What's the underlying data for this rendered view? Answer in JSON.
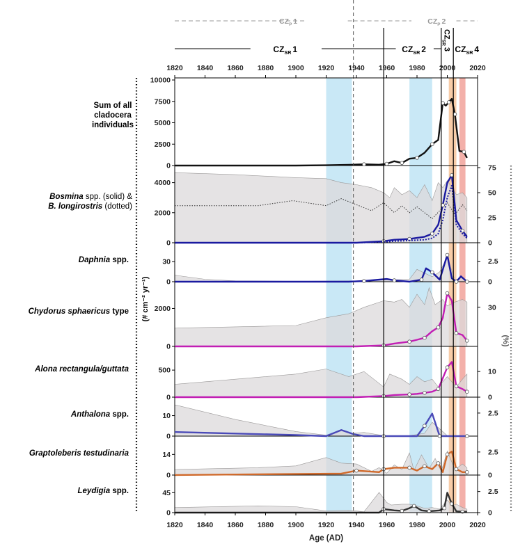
{
  "figure": {
    "xlabel": "Age (AD)",
    "ylabel_left": "(# cm⁻² yr⁻¹)",
    "ylabel_right": "(%)",
    "colors": {
      "total": "#111111",
      "bosmina": "#1a1aa0",
      "daphnia": "#1a1aa0",
      "chydorus": "#c21fb4",
      "alona": "#c21fb4",
      "anthalona": "#4a4ab8",
      "graptoleberis": "#d0692a",
      "leydigia": "#333333",
      "area": "#dcdadb",
      "blue_band": "#bfe4f4",
      "orange_band": "#f6c79e",
      "red_band": "#f2a7a0"
    }
  },
  "zones": {
    "czp": [
      {
        "label": "CZ",
        "sub": "P",
        "num": "1"
      },
      {
        "label": "CZ",
        "sub": "P",
        "num": "2"
      }
    ],
    "czsr": [
      {
        "label": "CZ",
        "sub": "SR",
        "num": "1"
      },
      {
        "label": "CZ",
        "sub": "SR",
        "num": "2"
      },
      {
        "label": "CZ",
        "sub": "SR",
        "num": "3"
      },
      {
        "label": "CZ",
        "sub": "SR",
        "num": "4"
      }
    ]
  },
  "chart_data": {
    "type": "area",
    "x_range": [
      1820,
      2020
    ],
    "x_ticks": [
      1820,
      1840,
      1860,
      1880,
      1900,
      1920,
      1940,
      1960,
      1980,
      2000,
      2020
    ],
    "zone_boundaries": {
      "czp": [
        1938
      ],
      "czsr": [
        1958,
        1996,
        2004
      ]
    },
    "bands": [
      {
        "from": 1920,
        "to": 1937,
        "color": "blue"
      },
      {
        "from": 1975,
        "to": 1990,
        "color": "blue"
      },
      {
        "from": 2001,
        "to": 2006,
        "color": "orange"
      },
      {
        "from": 2008,
        "to": 2012,
        "color": "red"
      }
    ],
    "panels": [
      {
        "name": "Sum of all cladocera individuals",
        "label_lines": [
          "Sum of all",
          "cladocera",
          "individuals"
        ],
        "yticks_left": [
          "0",
          "2500",
          "5000",
          "7500",
          "10000"
        ],
        "yticks_left_values": [
          0,
          2500,
          5000,
          7500,
          10000
        ],
        "ylim_left": [
          0,
          10000
        ],
        "series": [
          {
            "x": [
              1820,
              1900,
              1920,
              1935,
              1945,
              1955,
              1960,
              1965,
              1970,
              1975,
              1980,
              1985,
              1990,
              1994,
              1997,
              1999,
              2001,
              2003,
              2005,
              2008,
              2011,
              2013
            ],
            "y": [
              0,
              0,
              30,
              80,
              150,
              100,
              200,
              500,
              300,
              800,
              900,
              1500,
              2500,
              3000,
              7300,
              7000,
              7400,
              7800,
              6000,
              1700,
              1600,
              900
            ]
          }
        ]
      },
      {
        "name": "Bosmina spp. (solid) & B. longirostris (dotted)",
        "label_parts": [
          "Bosmina",
          " spp. (solid) &",
          "B. longirostris",
          " (dotted)"
        ],
        "yticks_left": [
          "0",
          "2000",
          "4000"
        ],
        "yticks_left_values": [
          0,
          2000,
          4000
        ],
        "ylim_left": [
          0,
          5000
        ],
        "yticks_right": [
          "0",
          "25",
          "50",
          "75"
        ],
        "yticks_right_values": [
          0,
          25,
          50,
          75
        ],
        "ylim_right": [
          0,
          75
        ],
        "area": {
          "x": [
            1820,
            1860,
            1900,
            1920,
            1930,
            1940,
            1950,
            1958,
            1962,
            1965,
            1970,
            1975,
            1980,
            1985,
            1990,
            1994,
            1997,
            2000,
            2003,
            2006,
            2010,
            2013
          ],
          "y": [
            70,
            68,
            65,
            64,
            60,
            58,
            55,
            50,
            45,
            55,
            48,
            52,
            45,
            58,
            42,
            60,
            55,
            62,
            55,
            48,
            50,
            45
          ]
        },
        "series": [
          {
            "x": [
              1820,
              1940,
              1958,
              1965,
              1975,
              1985,
              1990,
              1994,
              1997,
              2000,
              2003,
              2006,
              2010,
              2013
            ],
            "y": [
              0,
              0,
              100,
              200,
              250,
              400,
              600,
              1200,
              2500,
              4000,
              4500,
              1500,
              800,
              400
            ],
            "style": "solid"
          },
          {
            "x": [
              1820,
              1940,
              1958,
              1965,
              1975,
              1985,
              1990,
              1994,
              1997,
              2000,
              2003,
              2006,
              2010,
              2013
            ],
            "y": [
              0,
              0,
              50,
              100,
              150,
              200,
              300,
              600,
              1500,
              3000,
              3800,
              1200,
              600,
              300
            ],
            "style": "dotted"
          }
        ],
        "pct_line": {
          "x": [
            1820,
            1875,
            1898,
            1920,
            1930,
            1940,
            1950,
            1958,
            1965,
            1970,
            1975,
            1980,
            1985,
            1990,
            1995,
            2000,
            2005,
            2010,
            2013
          ],
          "y": [
            37,
            37,
            42,
            37,
            44,
            38,
            32,
            40,
            30,
            37,
            30,
            36,
            30,
            24,
            32,
            40,
            28,
            38,
            32
          ]
        }
      },
      {
        "name": "Daphnia spp.",
        "label_parts": [
          "Daphnia",
          " spp."
        ],
        "yticks_left": [
          "0",
          "30"
        ],
        "yticks_left_values": [
          0,
          30
        ],
        "ylim_left": [
          0,
          55
        ],
        "yticks_right": [
          "0",
          "2.5"
        ],
        "yticks_right_values": [
          0,
          2.5
        ],
        "ylim_right": [
          0,
          4.5
        ],
        "area": {
          "x": [
            1820,
            1840,
            1860,
            1900,
            1940,
            1960,
            1975,
            1980,
            1990,
            1995,
            2000,
            2005,
            2010,
            2013
          ],
          "y": [
            0.8,
            0.3,
            0.1,
            0.05,
            0.1,
            0.2,
            0.3,
            1.5,
            0.6,
            1.2,
            3.0,
            0.2,
            0.5,
            0.1
          ]
        },
        "series": [
          {
            "x": [
              1820,
              1935,
              1945,
              1960,
              1965,
              1975,
              1983,
              1986,
              1990,
              1995,
              2000,
              2003,
              2006,
              2009,
              2013
            ],
            "y": [
              0,
              0,
              1,
              4,
              2,
              0,
              3,
              20,
              14,
              3,
              40,
              5,
              0,
              8,
              0
            ]
          }
        ]
      },
      {
        "name": "Chydorus sphaericus type",
        "label_parts": [
          "Chydorus sphaericus",
          " type"
        ],
        "yticks_left": [
          "0",
          "2000"
        ],
        "yticks_left_values": [
          0,
          2000
        ],
        "ylim_left": [
          0,
          3300
        ],
        "yticks_right": [
          "30"
        ],
        "yticks_right_values": [
          30
        ],
        "ylim_right": [
          0,
          48
        ],
        "area": {
          "x": [
            1820,
            1860,
            1900,
            1920,
            1935,
            1945,
            1958,
            1965,
            1970,
            1975,
            1980,
            1985,
            1988,
            1992,
            1997,
            2000,
            2005,
            2010,
            2013
          ],
          "y": [
            14,
            15,
            16,
            22,
            25,
            30,
            35,
            34,
            36,
            30,
            40,
            32,
            45,
            32,
            36,
            31,
            34,
            36,
            34
          ]
        },
        "series": [
          {
            "x": [
              1820,
              1940,
              1958,
              1965,
              1975,
              1980,
              1985,
              1990,
              1994,
              1997,
              2000,
              2003,
              2006,
              2010,
              2013
            ],
            "y": [
              0,
              0,
              50,
              150,
              250,
              350,
              450,
              800,
              1000,
              1500,
              2800,
              2400,
              700,
              600,
              300
            ]
          }
        ]
      },
      {
        "name": "Alona rectangula/guttata",
        "label_parts": [
          "Alona rectangula/guttata",
          ""
        ],
        "yticks_left": [
          "0",
          "500"
        ],
        "yticks_left_values": [
          0,
          500
        ],
        "ylim_left": [
          0,
          900
        ],
        "yticks_right": [
          "0",
          "10"
        ],
        "yticks_right_values": [
          0,
          10
        ],
        "ylim_right": [
          0,
          19
        ],
        "area": {
          "x": [
            1820,
            1860,
            1900,
            1920,
            1935,
            1945,
            1958,
            1962,
            1970,
            1975,
            1980,
            1985,
            1990,
            1994,
            2000,
            2003,
            2006,
            2010,
            2013
          ],
          "y": [
            5,
            7,
            9,
            11,
            8,
            10,
            4,
            9,
            7,
            5,
            8,
            6,
            7,
            4,
            8,
            6,
            4,
            7,
            9
          ]
        },
        "series": [
          {
            "x": [
              1820,
              1940,
              1958,
              1965,
              1975,
              1980,
              1985,
              1990,
              1994,
              1997,
              2000,
              2003,
              2006,
              2010,
              2013
            ],
            "y": [
              0,
              0,
              20,
              40,
              50,
              60,
              80,
              100,
              150,
              350,
              550,
              650,
              200,
              150,
              100
            ]
          }
        ]
      },
      {
        "name": "Anthalona spp.",
        "label_parts": [
          "Anthalona",
          " spp."
        ],
        "yticks_left": [
          "0",
          "10"
        ],
        "yticks_left_values": [
          0,
          10
        ],
        "ylim_left": [
          0,
          18
        ],
        "yticks_right": [
          "2.5"
        ],
        "yticks_right_values": [
          2.5
        ],
        "ylim_right": [
          0,
          4
        ],
        "area": {
          "x": [
            1820,
            1860,
            1900,
            1920,
            1930,
            1938,
            1945,
            1958,
            1975,
            1985,
            1990,
            2000,
            2013
          ],
          "y": [
            3.4,
            1.8,
            0.5,
            0.1,
            0.6,
            0.3,
            0.4,
            0.05,
            0.05,
            0.3,
            1.5,
            0.05,
            0.05
          ]
        },
        "series": [
          {
            "x": [
              1820,
              1900,
              1920,
              1930,
              1938,
              1945,
              1958,
              1980,
              1985,
              1990,
              1995,
              2000,
              2013
            ],
            "y": [
              2,
              0.5,
              0,
              3,
              1,
              0,
              0,
              0,
              5,
              11,
              0,
              0,
              0
            ]
          }
        ]
      },
      {
        "name": "Graptoleberis testudinaria",
        "label_parts": [
          "Graptoleberis testudinaria",
          ""
        ],
        "yticks_left": [
          "0",
          "14"
        ],
        "yticks_left_values": [
          0,
          14
        ],
        "ylim_left": [
          0,
          25
        ],
        "yticks_right": [
          "0",
          "2.5"
        ],
        "yticks_right_values": [
          0,
          2.5
        ],
        "ylim_right": [
          0,
          4
        ],
        "area": {
          "x": [
            1820,
            1875,
            1900,
            1920,
            1930,
            1940,
            1950,
            1955,
            1960,
            1965,
            1970,
            1975,
            1978,
            1983,
            1988,
            1992,
            1996,
            2000,
            2005,
            2010,
            2013
          ],
          "y": [
            0.6,
            0.8,
            1.0,
            1.9,
            1.3,
            1.2,
            0.4,
            0.8,
            0.2,
            1.1,
            0.6,
            2.4,
            0.5,
            2.2,
            0.7,
            1.8,
            0.4,
            2.6,
            0.6,
            1.2,
            0.8
          ]
        },
        "series": [
          {
            "x": [
              1820,
              1930,
              1940,
              1955,
              1958,
              1965,
              1975,
              1980,
              1985,
              1990,
              1994,
              1997,
              2000,
              2003,
              2006,
              2010,
              2013
            ],
            "y": [
              0,
              1,
              3,
              2,
              4,
              5,
              5,
              3,
              6,
              4,
              8,
              2,
              14,
              16,
              4,
              2,
              2
            ]
          }
        ]
      },
      {
        "name": "Leydigia spp.",
        "label_parts": [
          "Leydigia",
          " spp."
        ],
        "yticks_left": [
          "0",
          "45"
        ],
        "yticks_left_values": [
          0,
          45
        ],
        "ylim_left": [
          0,
          80
        ],
        "yticks_right": [
          "0",
          "2.5"
        ],
        "yticks_right_values": [
          0,
          2.5
        ],
        "ylim_right": [
          0,
          4.2
        ],
        "area": {
          "x": [
            1820,
            1875,
            1900,
            1920,
            1935,
            1945,
            1955,
            1960,
            1963,
            1970,
            1975,
            1980,
            1985,
            1990,
            1995,
            2000,
            2003,
            2006,
            2010,
            2013
          ],
          "y": [
            0.6,
            0.8,
            0.7,
            0.2,
            0.3,
            0.1,
            2.4,
            1.2,
            0.9,
            1.0,
            1.0,
            0.8,
            0.5,
            0.6,
            0.4,
            1.5,
            0.8,
            1.0,
            0.6,
            0.4
          ]
        },
        "series": [
          {
            "x": [
              1820,
              1955,
              1958,
              1965,
              1970,
              1975,
              1978,
              1983,
              1988,
              1995,
              1998,
              2000,
              2003,
              2006,
              2010,
              2013
            ],
            "y": [
              0,
              0,
              8,
              5,
              4,
              10,
              15,
              5,
              3,
              5,
              10,
              45,
              20,
              3,
              2,
              2
            ]
          }
        ]
      }
    ]
  }
}
